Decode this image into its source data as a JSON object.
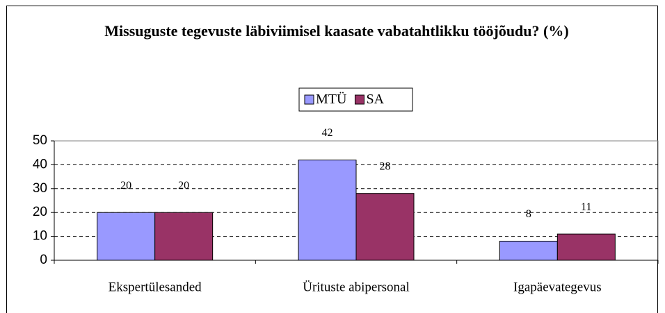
{
  "chart_data": {
    "type": "bar",
    "title": "Missuguste tegevuste läbiviimisel kaasate vabatahtlikku tööjõudu? (%)",
    "categories": [
      "Ekspertülesanded",
      "Ürituste abipersonal",
      "Igapäevategevus"
    ],
    "series": [
      {
        "name": "MTÜ",
        "color": "#9999ff",
        "values": [
          20,
          42,
          8
        ]
      },
      {
        "name": "SA",
        "color": "#993366",
        "values": [
          20,
          28,
          11
        ]
      }
    ],
    "ylim": [
      0,
      50
    ],
    "yticks": [
      0,
      10,
      20,
      30,
      40,
      50
    ],
    "grid": true,
    "legend": "top"
  }
}
